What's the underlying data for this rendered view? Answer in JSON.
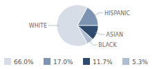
{
  "chart_data": {
    "type": "pie",
    "categories": [
      "WHITE",
      "HISPANIC",
      "ASIAN",
      "BLACK"
    ],
    "values": [
      66.0,
      17.0,
      11.7,
      5.3
    ],
    "value_labels": [
      "66.0%",
      "17.0%",
      "11.7%",
      "5.3%"
    ],
    "colors": [
      "#d6dde7",
      "#7c93b1",
      "#2e4b6d",
      "#aebdd0"
    ],
    "legend": "bottom"
  }
}
